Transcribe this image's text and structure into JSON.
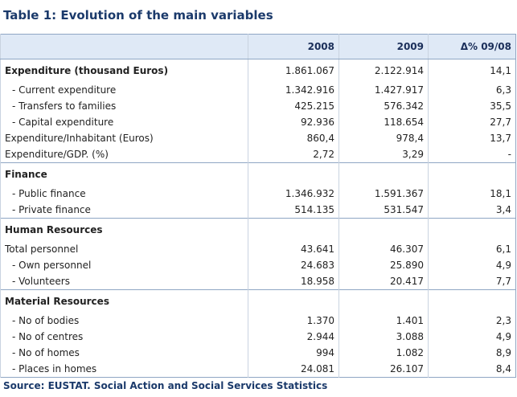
{
  "title": "Table 1: Evolution of the main variables",
  "table": {
    "header": [
      "2008",
      "2009",
      "Δ% 09/08"
    ],
    "sections": [
      {
        "title": "Expenditure (thousand Euros)",
        "values": [
          "1.861.067",
          "2.122.914",
          "14,1"
        ],
        "rows": [
          {
            "label": "- Current expenditure",
            "indent": true,
            "values": [
              "1.342.916",
              "1.427.917",
              "6,3"
            ]
          },
          {
            "label": "- Transfers to families",
            "indent": true,
            "values": [
              "425.215",
              "576.342",
              "35,5"
            ]
          },
          {
            "label": "- Capital expenditure",
            "indent": true,
            "values": [
              "92.936",
              "118.654",
              "27,7"
            ]
          },
          {
            "label": "Expenditure/Inhabitant (Euros)",
            "indent": false,
            "values": [
              "860,4",
              "978,4",
              "13,7"
            ]
          },
          {
            "label": "Expenditure/GDP. (%)",
            "indent": false,
            "values": [
              "2,72",
              "3,29",
              "-"
            ]
          }
        ]
      },
      {
        "title": "Finance",
        "rows": [
          {
            "label": "- Public finance",
            "indent": true,
            "values": [
              "1.346.932",
              "1.591.367",
              "18,1"
            ]
          },
          {
            "label": "- Private finance",
            "indent": true,
            "values": [
              "514.135",
              "531.547",
              "3,4"
            ]
          }
        ]
      },
      {
        "title": "Human Resources",
        "rows": [
          {
            "label": "Total personnel",
            "indent": false,
            "values": [
              "43.641",
              "46.307",
              "6,1"
            ]
          },
          {
            "label": "- Own personnel",
            "indent": true,
            "values": [
              "24.683",
              "25.890",
              "4,9"
            ]
          },
          {
            "label": "- Volunteers",
            "indent": true,
            "values": [
              "18.958",
              "20.417",
              "7,7"
            ]
          }
        ]
      },
      {
        "title": "Material Resources",
        "rows": [
          {
            "label": "- No of bodies",
            "indent": true,
            "values": [
              "1.370",
              "1.401",
              "2,3"
            ]
          },
          {
            "label": "- No of centres",
            "indent": true,
            "values": [
              "2.944",
              "3.088",
              "4,9"
            ]
          },
          {
            "label": "- No of homes",
            "indent": true,
            "values": [
              "994",
              "1.082",
              "8,9"
            ]
          },
          {
            "label": "- Places in homes",
            "indent": true,
            "values": [
              "24.081",
              "26.107",
              "8,4"
            ]
          }
        ]
      }
    ]
  },
  "source": "Source: EUSTAT. Social Action and Social Services Statistics"
}
